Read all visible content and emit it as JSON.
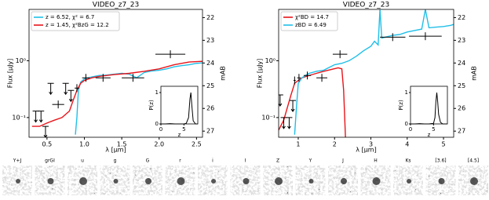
{
  "chart_data": [
    {
      "type": "line",
      "title": "VIDEO_z7_23",
      "xlabel": "λ [μm]",
      "ylabel": "Flux [μJy]",
      "y2label": "mAB",
      "yscale": "log",
      "xlim": [
        0.26,
        2.58
      ],
      "xticks": [
        0.5,
        {
          "value": 1,
          "label": "1.0"
        },
        1.5,
        {
          "value": 2,
          "label": "2.0"
        },
        2.5
      ],
      "ylim": [
        0.045,
        8
      ],
      "yticks": [
        {
          "value": 0.1,
          "label": "10⁻¹"
        },
        {
          "value": 1,
          "label": "10⁰"
        }
      ],
      "y2lim": [
        27.27,
        21.64
      ],
      "y2ticks": [
        22,
        23,
        24,
        25,
        26,
        27
      ],
      "series": [
        {
          "name": "z = 6.52, χ² = 6.7",
          "color": "#1fbfe8",
          "x": [
            0.88,
            0.9,
            0.92,
            0.95,
            1.0,
            1.1,
            1.2,
            1.3,
            1.4,
            1.5,
            1.6,
            1.7,
            1.8,
            1.9,
            2.0,
            2.1,
            2.2,
            2.3,
            2.4,
            2.5,
            2.6
          ],
          "values": [
            0.05,
            0.1,
            0.3,
            0.42,
            0.48,
            0.52,
            0.55,
            0.56,
            0.58,
            0.6,
            0.58,
            0.5,
            0.62,
            0.66,
            0.68,
            0.72,
            0.78,
            0.82,
            0.85,
            0.9,
            0.92
          ]
        },
        {
          "name": "z = 1.45, χ²BzG = 12.2",
          "color": "#e8141a",
          "x": [
            0.3,
            0.4,
            0.5,
            0.6,
            0.7,
            0.8,
            0.85,
            0.9,
            0.95,
            1.0,
            1.1,
            1.2,
            1.4,
            1.6,
            1.8,
            2.0,
            2.2,
            2.4,
            2.6
          ],
          "values": [
            0.07,
            0.07,
            0.08,
            0.09,
            0.1,
            0.13,
            0.2,
            0.3,
            0.4,
            0.45,
            0.5,
            0.53,
            0.57,
            0.6,
            0.65,
            0.72,
            0.85,
            0.95,
            0.98
          ]
        }
      ],
      "points": {
        "x": [
          0.65,
          0.9,
          1.02,
          1.25,
          1.65,
          2.15
        ],
        "values": [
          0.17,
          0.33,
          0.5,
          0.5,
          0.5,
          1.3
        ],
        "xerr": [
          0.08,
          0.03,
          0.05,
          0.1,
          0.15,
          0.2
        ]
      },
      "upper_limits": {
        "x": [
          0.35,
          0.42,
          0.48,
          0.55,
          0.75,
          0.82
        ],
        "values": [
          0.13,
          0.13,
          0.07,
          0.4,
          0.4,
          0.3
        ]
      },
      "inset": {
        "xlabel": "z",
        "ylabel": "P(z)",
        "xlim": [
          0,
          8
        ],
        "ylim": [
          0,
          1.2
        ],
        "xticks": [
          0,
          5
        ],
        "yticks": [
          0,
          1
        ],
        "x": [
          0,
          1,
          2,
          3,
          4,
          5,
          5.5,
          6,
          6.3,
          6.5,
          6.7,
          7,
          7.5,
          8
        ],
        "values": [
          0,
          0,
          0.01,
          0,
          0,
          0,
          0.02,
          0.2,
          0.8,
          1,
          0.6,
          0.1,
          0,
          0
        ]
      }
    },
    {
      "type": "line",
      "title": "VIDEO_z7_23",
      "xlabel": "λ [μm]",
      "ylabel": "Flux [μJy]",
      "y2label": "mAB",
      "yscale": "log",
      "xlim": [
        0.46,
        5.28
      ],
      "xticks": [
        1,
        2,
        3,
        4,
        5
      ],
      "ylim": [
        0.045,
        8
      ],
      "yticks": [
        {
          "value": 0.1,
          "label": "10⁻¹"
        },
        {
          "value": 1,
          "label": "10⁰"
        }
      ],
      "y2lim": [
        27.27,
        21.64
      ],
      "y2ticks": [
        22,
        23,
        24,
        25,
        26,
        27
      ],
      "series": [
        {
          "name": "χ²BD = 14.7",
          "color": "#e8141a",
          "x": [
            0.46,
            0.6,
            0.7,
            0.8,
            0.9,
            1.0,
            1.1,
            1.3,
            1.5,
            1.7,
            1.9,
            2.1,
            2.2,
            2.25,
            2.3
          ],
          "values": [
            0.06,
            0.09,
            0.15,
            0.25,
            0.4,
            0.45,
            0.5,
            0.55,
            0.6,
            0.65,
            0.7,
            0.75,
            0.72,
            0.3,
            0.045
          ]
        },
        {
          "name": "zBD = 6.49",
          "color": "#1fbfe8",
          "x": [
            0.9,
            0.95,
            1.0,
            1.1,
            1.2,
            1.3,
            1.5,
            1.7,
            2.0,
            2.2,
            2.4,
            2.6,
            2.8,
            3.0,
            3.1,
            3.2,
            3.25,
            3.3,
            3.4,
            3.6,
            3.8,
            4.0,
            4.2,
            4.4,
            4.5,
            4.6,
            4.8,
            5.0,
            5.2,
            5.3
          ],
          "values": [
            0.05,
            0.15,
            0.4,
            0.5,
            0.55,
            0.6,
            0.65,
            0.68,
            0.85,
            0.9,
            1,
            1.2,
            1.5,
            1.8,
            2.2,
            1.9,
            8,
            2.5,
            2.6,
            2.8,
            2.9,
            3.2,
            3.4,
            3.6,
            8,
            3.8,
            3.9,
            4,
            4.2,
            4.4
          ]
        }
      ],
      "points": {
        "x": [
          0.9,
          1.02,
          1.25,
          1.65,
          2.15,
          3.6,
          4.5
        ],
        "values": [
          0.45,
          0.5,
          0.55,
          0.5,
          1.3,
          2.6,
          2.7
        ],
        "xerr": [
          0.03,
          0.05,
          0.1,
          0.15,
          0.2,
          0.35,
          0.45
        ]
      },
      "upper_limits": {
        "x": [
          0.5,
          0.6,
          0.75,
          0.85
        ],
        "values": [
          0.25,
          0.1,
          0.1,
          0.2
        ]
      },
      "inset": {
        "xlabel": "z",
        "ylabel": "P(z)",
        "xlim": [
          0,
          8
        ],
        "ylim": [
          0,
          1.2
        ],
        "xticks": [
          0,
          5
        ],
        "yticks": [
          0,
          1
        ],
        "x": [
          0,
          1,
          2,
          3,
          4,
          5,
          5.3,
          5.5,
          5.7,
          5.9,
          6.1,
          6.5,
          7,
          8
        ],
        "values": [
          0,
          0,
          0.01,
          0,
          0,
          0.02,
          0.2,
          0.7,
          1,
          0.7,
          0.3,
          0.05,
          0,
          0
        ]
      }
    }
  ],
  "thumbnails": {
    "labels": [
      "Y+J",
      "grGI",
      "u",
      "g",
      "G",
      "r",
      "i",
      "I",
      "Z",
      "Y",
      "J",
      "H",
      "Ks",
      "[3.6]",
      "[4.5]"
    ]
  }
}
